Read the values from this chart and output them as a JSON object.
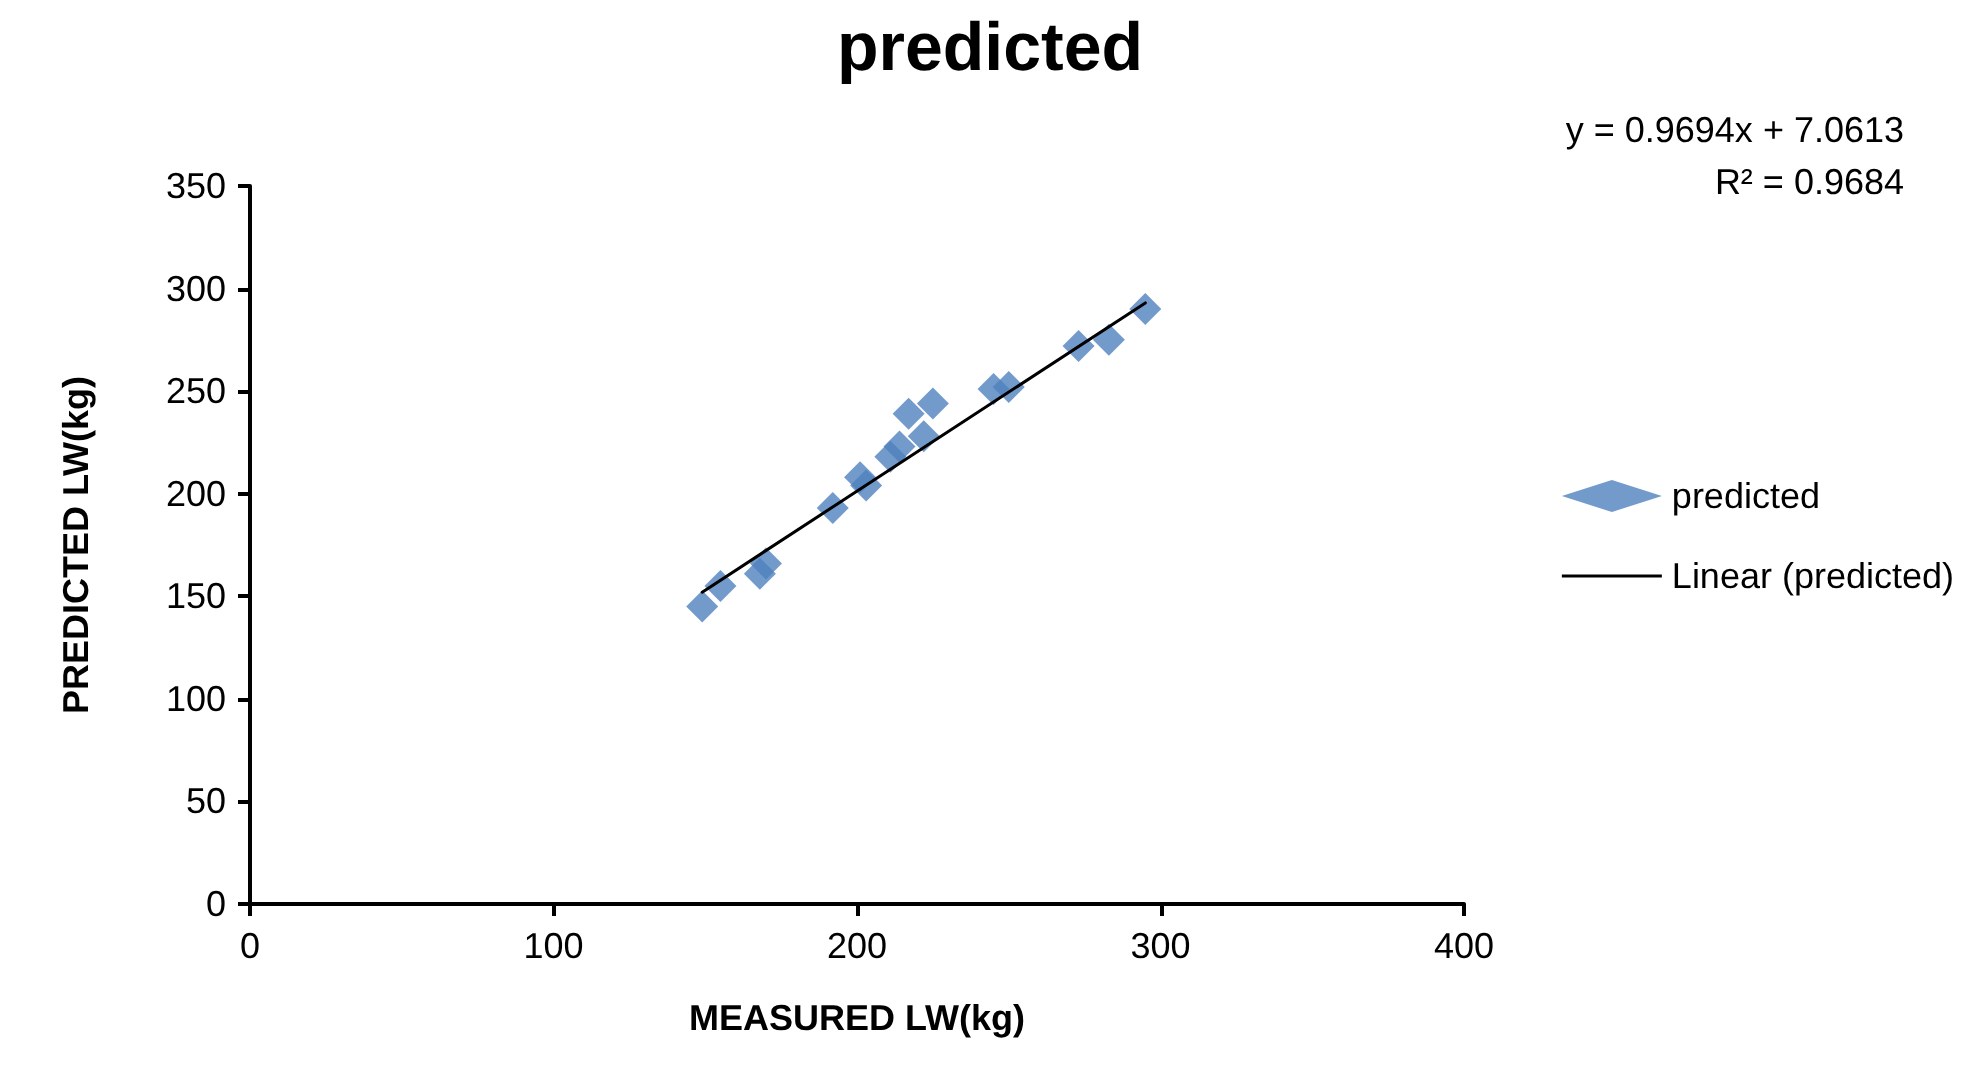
{
  "chart_data": {
    "type": "scatter",
    "title": "predicted",
    "xlabel": "MEASURED LW(kg)",
    "ylabel": "PREDICTED LW(kg)",
    "annotations": [
      "y = 0.9694x + 7.0613",
      "R² = 0.9684"
    ],
    "series": [
      {
        "name": "predicted",
        "color": "#4f81bd",
        "marker": "diamond",
        "x": [
          149,
          155,
          168,
          170,
          192,
          201,
          203,
          211,
          214,
          217,
          222,
          225,
          245,
          250,
          273,
          283,
          295
        ],
        "values": [
          145,
          155,
          161,
          166,
          193,
          208,
          204,
          218,
          223,
          239,
          228,
          244,
          251,
          252,
          272,
          275,
          290
        ]
      },
      {
        "name": "Linear (predicted)",
        "type": "line",
        "color": "#000000",
        "marker": "none",
        "line_style": "solid",
        "x": [
          149,
          295
        ],
        "values": [
          152,
          293
        ]
      }
    ],
    "xlim": [
      0,
      400
    ],
    "xticks": [
      0,
      100,
      200,
      300,
      400
    ],
    "ylim": [
      0,
      350
    ],
    "yticks": [
      0,
      50,
      100,
      150,
      200,
      250,
      300,
      350
    ],
    "grid": false,
    "legend": "right"
  }
}
